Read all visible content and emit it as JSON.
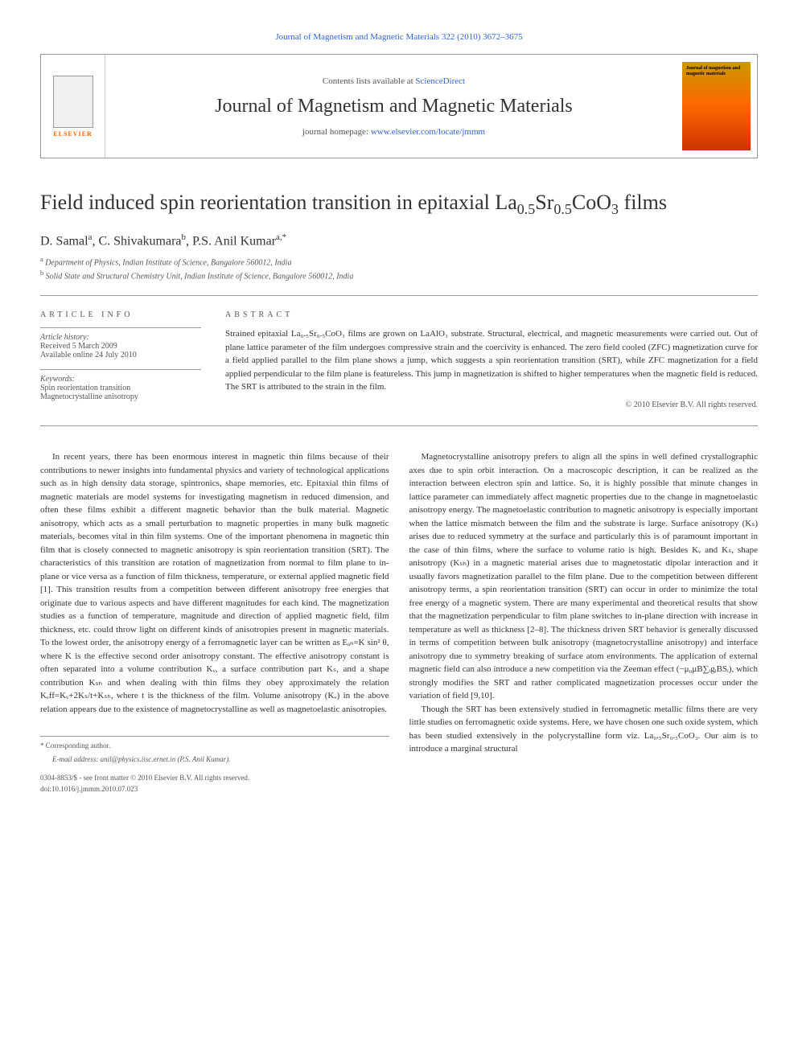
{
  "citation": "Journal of Magnetism and Magnetic Materials 322 (2010) 3672–3675",
  "header": {
    "contents_prefix": "Contents lists available at ",
    "contents_link": "ScienceDirect",
    "journal_name": "Journal of Magnetism and Magnetic Materials",
    "homepage_prefix": "journal homepage: ",
    "homepage_link": "www.elsevier.com/locate/jmmm",
    "elsevier_label": "ELSEVIER",
    "journal_logo_text": "Journal of magnetism and magnetic materials"
  },
  "title_parts": {
    "pre": "Field induced spin reorientation transition in epitaxial La",
    "sub1": "0.5",
    "mid1": "Sr",
    "sub2": "0.5",
    "mid2": "CoO",
    "sub3": "3",
    "post": " films"
  },
  "authors_html": "D. Samal",
  "authors": [
    {
      "name": "D. Samal",
      "sup": "a"
    },
    {
      "name": "C. Shivakumara",
      "sup": "b"
    },
    {
      "name": "P.S. Anil Kumar",
      "sup": "a,*"
    }
  ],
  "affiliations": [
    {
      "sup": "a",
      "text": "Department of Physics, Indian Institute of Science, Bangalore 560012, India"
    },
    {
      "sup": "b",
      "text": "Solid State and Structural Chemistry Unit, Indian Institute of Science, Bangalore 560012, India"
    }
  ],
  "info_heading": "ARTICLE INFO",
  "abstract_heading": "ABSTRACT",
  "history": {
    "label": "Article history:",
    "received": "Received 5 March 2009",
    "online": "Available online 24 July 2010"
  },
  "keywords": {
    "label": "Keywords:",
    "items": [
      "Spin reorientation transition",
      "Magnetocrystalline anisotropy"
    ]
  },
  "abstract": "Strained epitaxial La₀.₅Sr₀.₅CoO₃ films are grown on LaAlO₃ substrate. Structural, electrical, and magnetic measurements were carried out. Out of plane lattice parameter of the film undergoes compressive strain and the coercivity is enhanced. The zero field cooled (ZFC) magnetization curve for a field applied parallel to the film plane shows a jump, which suggests a spin reorientation transition (SRT), while ZFC magnetization for a field applied perpendicular to the film plane is featureless. This jump in magnetization is shifted to higher temperatures when the magnetic field is reduced. The SRT is attributed to the strain in the film.",
  "copyright": "© 2010 Elsevier B.V. All rights reserved.",
  "body": {
    "col1": "In recent years, there has been enormous interest in magnetic thin films because of their contributions to newer insights into fundamental physics and variety of technological applications such as in high density data storage, spintronics, shape memories, etc. Epitaxial thin films of magnetic materials are model systems for investigating magnetism in reduced dimension, and often these films exhibit a different magnetic behavior than the bulk material. Magnetic anisotropy, which acts as a small perturbation to magnetic properties in many bulk magnetic materials, becomes vital in thin film systems. One of the important phenomena in magnetic thin film that is closely connected to magnetic anisotropy is spin reorientation transition (SRT). The characteristics of this transition are rotation of magnetization from normal to film plane to in-plane or vice versa as a function of film thickness, temperature, or external applied magnetic field [1]. This transition results from a competition between different anisotropy free energies that originate due to various aspects and have different magnitudes for each kind. The magnetization studies as a function of temperature, magnitude and direction of applied magnetic field, film thickness, etc. could throw light on different kinds of anisotropies present in magnetic materials. To the lowest order, the anisotropy energy of a ferromagnetic layer can be written as Eₐₙ=K sin² θ, where K is the effective second order anisotropy constant. The effective anisotropy constant is often separated into a volume contribution Kᵥ, a surface contribution part Kₛ, and a shape contribution Kₛₕ and when dealing with thin films they obey approximately the relation Kₑff=Kᵥ+2Kₛ/t+Kₛₕ, where t is the thickness of the film. Volume anisotropy (Kᵥ) in the above relation appears due to the existence of magnetocrystalline as well as magnetoelastic anisotropies.",
    "col2_p1": "Magnetocrystalline anisotropy prefers to align all the spins in well defined crystallographic axes due to spin orbit interaction. On a macroscopic description, it can be realized as the interaction between electron spin and lattice. So, it is highly possible that minute changes in lattice parameter can immediately affect magnetic properties due to the change in magnetoelastic anisotropy energy. The magnetoelastic contribution to magnetic anisotropy is especially important when the lattice mismatch between the film and the substrate is large. Surface anisotropy (Kₛ) arises due to reduced symmetry at the surface and particularly this is of paramount important in the case of thin films, where the surface to volume ratio is high. Besides Kᵥ and Kₛ, shape anisotropy (Kₛₕ) in a magnetic material arises due to magnetostatic dipolar interaction and it usually favors magnetization parallel to the film plane. Due to the competition between different anisotropy terms, a spin reorientation transition (SRT) can occur in order to minimize the total free energy of a magnetic system. There are many experimental and theoretical results that show that the magnetization perpendicular to film plane switches to in-plane direction with increase in temperature as well as thickness [2–8]. The thickness driven SRT behavior is generally discussed in terms of competition between bulk anisotropy (magnetocrystalline anisotropy) and interface anisotropy due to symmetry breaking of surface atom environments. The application of external magnetic field can also introduce a new competition via the Zeeman effect (−μ₀μB∑ᵢgᵢBSᵢ), which strongly modifies the SRT and rather complicated magnetization processes occur under the variation of field [9,10].",
    "col2_p2": "Though the SRT has been extensively studied in ferromagnetic metallic films there are very little studies on ferromagnetic oxide systems. Here, we have chosen one such oxide system, which has been studied extensively in the polycrystalline form viz. La₀.₅Sr₀.₅CoO₃. Our aim is to introduce a marginal structural"
  },
  "footer": {
    "corresponding": "* Corresponding author.",
    "email_label": "E-mail address:",
    "email": "anil@physics.iisc.ernet.in (P.S. Anil Kumar).",
    "issn": "0304-8853/$ - see front matter © 2010 Elsevier B.V. All rights reserved.",
    "doi": "doi:10.1016/j.jmmm.2010.07.023"
  },
  "refs": {
    "r1": "[1]",
    "r28": "[2–8]",
    "r910": "[9,10]"
  }
}
